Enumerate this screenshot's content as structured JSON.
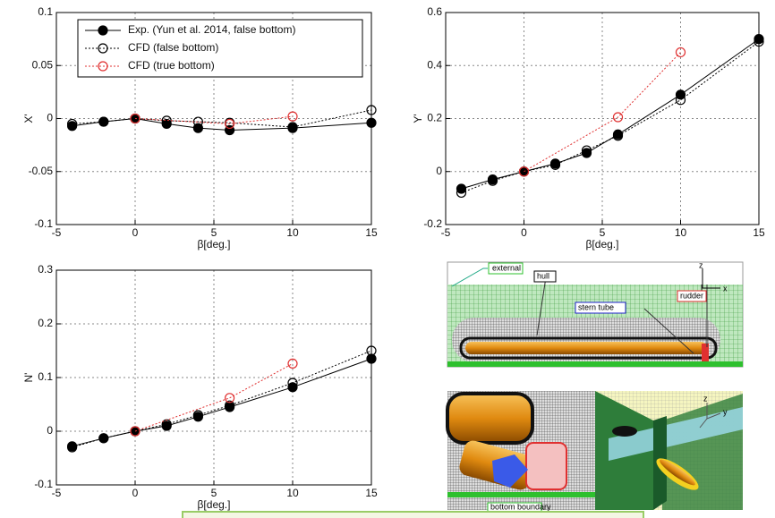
{
  "chart_data": [
    {
      "type": "line",
      "xlabel": "β[deg.]",
      "ylabel": "X'",
      "xlim": [
        -5,
        15
      ],
      "ylim": [
        -0.1,
        0.1
      ],
      "xticks": [
        -5,
        0,
        5,
        10,
        15
      ],
      "yticks": [
        -0.1,
        -0.05,
        0,
        0.05,
        0.1
      ],
      "grid": true,
      "legend": "upper left",
      "series": [
        {
          "name": "Exp. (Yun et al. 2014, false bottom)",
          "color": "#000000",
          "marker": "filled",
          "dash": "solid",
          "x": [
            -4,
            -2,
            0,
            2,
            4,
            6,
            10,
            15
          ],
          "values": [
            -0.007,
            -0.003,
            0,
            -0.005,
            -0.009,
            -0.011,
            -0.009,
            -0.004
          ]
        },
        {
          "name": "CFD (false bottom)",
          "color": "#000000",
          "marker": "open",
          "dash": "dotted",
          "x": [
            -4,
            -2,
            0,
            2,
            4,
            6,
            10,
            15
          ],
          "values": [
            -0.005,
            -0.003,
            0,
            -0.002,
            -0.003,
            -0.004,
            -0.008,
            0.008
          ]
        },
        {
          "name": "CFD (true bottom)",
          "color": "#e03030",
          "marker": "open",
          "dash": "dotted",
          "x": [
            0,
            6,
            10
          ],
          "values": [
            0,
            -0.005,
            0.002
          ]
        }
      ]
    },
    {
      "type": "line",
      "xlabel": "β[deg.]",
      "ylabel": "Y'",
      "xlim": [
        -5,
        15
      ],
      "ylim": [
        -0.2,
        0.6
      ],
      "xticks": [
        -5,
        0,
        5,
        10,
        15
      ],
      "yticks": [
        -0.2,
        0,
        0.2,
        0.4,
        0.6
      ],
      "grid": true,
      "series": [
        {
          "name": "Exp. (Yun et al. 2014, false bottom)",
          "color": "#000000",
          "marker": "filled",
          "dash": "solid",
          "x": [
            -4,
            -2,
            0,
            2,
            4,
            6,
            10,
            15
          ],
          "values": [
            -0.065,
            -0.03,
            0,
            0.03,
            0.07,
            0.14,
            0.29,
            0.5
          ]
        },
        {
          "name": "CFD (false bottom)",
          "color": "#000000",
          "marker": "open",
          "dash": "dotted",
          "x": [
            -4,
            -2,
            0,
            2,
            4,
            6,
            10,
            15
          ],
          "values": [
            -0.08,
            -0.035,
            0,
            0.025,
            0.08,
            0.135,
            0.27,
            0.49
          ]
        },
        {
          "name": "CFD (true bottom)",
          "color": "#e03030",
          "marker": "open",
          "dash": "dotted",
          "x": [
            0,
            6,
            10
          ],
          "values": [
            0,
            0.205,
            0.45
          ]
        }
      ]
    },
    {
      "type": "line",
      "xlabel": "β[deg.]",
      "ylabel": "N'",
      "xlim": [
        -5,
        15
      ],
      "ylim": [
        -0.1,
        0.3
      ],
      "xticks": [
        -5,
        0,
        5,
        10,
        15
      ],
      "yticks": [
        -0.1,
        0,
        0.1,
        0.2,
        0.3
      ],
      "grid": true,
      "series": [
        {
          "name": "Exp. (Yun et al. 2014, false bottom)",
          "color": "#000000",
          "marker": "filled",
          "dash": "solid",
          "x": [
            -4,
            -2,
            0,
            2,
            4,
            6,
            10,
            15
          ],
          "values": [
            -0.028,
            -0.013,
            0,
            0.01,
            0.027,
            0.045,
            0.082,
            0.135
          ]
        },
        {
          "name": "CFD (false bottom)",
          "color": "#000000",
          "marker": "open",
          "dash": "dotted",
          "x": [
            -4,
            -2,
            0,
            2,
            4,
            6,
            10,
            15
          ],
          "values": [
            -0.03,
            -0.013,
            0,
            0.013,
            0.03,
            0.048,
            0.09,
            0.15
          ]
        },
        {
          "name": "CFD (true bottom)",
          "color": "#e03030",
          "marker": "open",
          "dash": "dotted",
          "x": [
            0,
            6,
            10
          ],
          "values": [
            0,
            0.062,
            0.126
          ]
        }
      ]
    }
  ],
  "mesh_labels": {
    "external": "external",
    "hull": "hull",
    "rudder": "rudder",
    "stern_tube": "stern tube",
    "bottom_boundary": "bottom boundary",
    "axis_x": "x",
    "axis_y": "y",
    "axis_z": "z"
  }
}
